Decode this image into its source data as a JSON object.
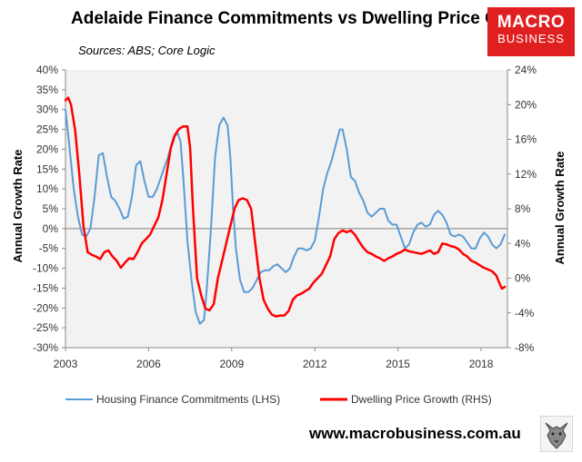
{
  "header": {
    "title": "Adelaide Finance Commitments vs Dwelling Price Growth",
    "sources": "Sources: ABS; Core Logic",
    "logo_line1": "MACRO",
    "logo_line2": "BUSINESS"
  },
  "footer": {
    "website": "www.macrobusiness.com.au",
    "wolf_icon": "wolf-icon"
  },
  "colors": {
    "finance": "#5b9bd5",
    "price": "#ff0000",
    "plot_bg": "#f2f2f2",
    "brand": "#e02020"
  },
  "chart_data": {
    "type": "line",
    "title": "Adelaide Finance Commitments vs Dwelling Price Growth",
    "xlabel": "",
    "ylabel_left": "Annual Growth Rate",
    "ylabel_right": "Annual Growth Rate",
    "xlim": [
      2003,
      2018.95
    ],
    "ylim_left": [
      -30,
      40
    ],
    "ylim_right": [
      -8,
      24
    ],
    "x_ticks": [
      2003,
      2006,
      2009,
      2012,
      2015,
      2018
    ],
    "x_tick_labels": [
      "2003",
      "2006",
      "2009",
      "2012",
      "2015",
      "2018"
    ],
    "y_left_ticks": [
      -30,
      -25,
      -20,
      -15,
      -10,
      -5,
      0,
      5,
      10,
      15,
      20,
      25,
      30,
      35,
      40
    ],
    "y_left_tick_labels": [
      "-30%",
      "-25%",
      "-20%",
      "-15%",
      "-10%",
      "-5%",
      "0%",
      "5%",
      "10%",
      "15%",
      "20%",
      "25%",
      "30%",
      "35%",
      "40%"
    ],
    "y_right_ticks": [
      -8,
      -4,
      0,
      4,
      8,
      12,
      16,
      20,
      24
    ],
    "y_right_tick_labels": [
      "-8%",
      "-4%",
      "0%",
      "4%",
      "8%",
      "12%",
      "16%",
      "20%",
      "24%"
    ],
    "grid": false,
    "legend_position": "bottom",
    "series": [
      {
        "name": "Housing Finance Commitments (LHS)",
        "axis": "left",
        "x": [
          2003.0,
          2003.15,
          2003.3,
          2003.45,
          2003.6,
          2003.75,
          2003.9,
          2004.05,
          2004.2,
          2004.35,
          2004.5,
          2004.65,
          2004.8,
          2004.95,
          2005.1,
          2005.25,
          2005.4,
          2005.55,
          2005.7,
          2005.85,
          2006.0,
          2006.15,
          2006.3,
          2006.5,
          2006.7,
          2006.9,
          2007.05,
          2007.15,
          2007.25,
          2007.4,
          2007.55,
          2007.7,
          2007.85,
          2008.0,
          2008.1,
          2008.25,
          2008.4,
          2008.55,
          2008.7,
          2008.85,
          2008.95,
          2009.05,
          2009.15,
          2009.3,
          2009.45,
          2009.6,
          2009.75,
          2009.9,
          2010.05,
          2010.2,
          2010.35,
          2010.5,
          2010.65,
          2010.8,
          2010.95,
          2011.1,
          2011.25,
          2011.4,
          2011.55,
          2011.7,
          2011.85,
          2012.0,
          2012.15,
          2012.3,
          2012.45,
          2012.6,
          2012.75,
          2012.9,
          2013.0,
          2013.15,
          2013.3,
          2013.45,
          2013.6,
          2013.75,
          2013.9,
          2014.05,
          2014.2,
          2014.35,
          2014.5,
          2014.65,
          2014.8,
          2014.95,
          2015.1,
          2015.25,
          2015.4,
          2015.55,
          2015.7,
          2015.85,
          2016.0,
          2016.15,
          2016.3,
          2016.45,
          2016.6,
          2016.75,
          2016.9,
          2017.05,
          2017.2,
          2017.35,
          2017.5,
          2017.65,
          2017.8,
          2017.95,
          2018.1,
          2018.25,
          2018.4,
          2018.55,
          2018.7,
          2018.85
        ],
        "values": [
          30,
          20,
          10,
          3,
          -1.5,
          -2,
          0,
          8,
          18.5,
          19,
          13,
          8,
          7,
          5,
          2.5,
          3,
          8,
          16,
          17,
          12,
          8,
          8,
          10,
          14,
          18,
          23,
          24,
          22,
          13,
          -3,
          -13,
          -21,
          -24,
          -23,
          -15,
          0,
          18,
          26,
          28,
          26,
          18,
          5,
          -5,
          -13,
          -16,
          -16,
          -15,
          -13,
          -11,
          -10.5,
          -10.5,
          -9.5,
          -9,
          -10,
          -11,
          -10,
          -7,
          -5,
          -5,
          -5.5,
          -5,
          -3,
          3,
          10,
          14,
          17,
          21,
          25,
          25,
          20,
          13,
          12,
          9,
          7,
          4,
          3,
          4,
          5,
          5,
          2,
          1,
          1,
          -2,
          -5,
          -4,
          -1,
          1,
          1.5,
          0.5,
          1,
          3.5,
          4.5,
          3.5,
          1.5,
          -1.5,
          -2,
          -1.5,
          -2,
          -3.5,
          -5,
          -5,
          -2.5,
          -1,
          -2,
          -4,
          -5,
          -4,
          -1.5
        ]
      },
      {
        "name": "Dwelling Price Growth (RHS)",
        "axis": "right",
        "x": [
          2003.0,
          2003.1,
          2003.2,
          2003.35,
          2003.5,
          2003.65,
          2003.8,
          2003.95,
          2004.1,
          2004.25,
          2004.4,
          2004.55,
          2004.7,
          2004.85,
          2005.0,
          2005.15,
          2005.3,
          2005.45,
          2005.6,
          2005.75,
          2005.9,
          2006.05,
          2006.2,
          2006.35,
          2006.5,
          2006.65,
          2006.8,
          2006.95,
          2007.1,
          2007.25,
          2007.4,
          2007.5,
          2007.6,
          2007.75,
          2007.9,
          2008.05,
          2008.2,
          2008.35,
          2008.5,
          2008.65,
          2008.8,
          2008.95,
          2009.1,
          2009.25,
          2009.4,
          2009.55,
          2009.7,
          2009.85,
          2010.0,
          2010.15,
          2010.3,
          2010.45,
          2010.6,
          2010.75,
          2010.9,
          2011.05,
          2011.2,
          2011.35,
          2011.5,
          2011.65,
          2011.8,
          2011.95,
          2012.1,
          2012.25,
          2012.4,
          2012.55,
          2012.7,
          2012.85,
          2013.0,
          2013.15,
          2013.3,
          2013.45,
          2013.6,
          2013.75,
          2013.9,
          2014.05,
          2014.2,
          2014.35,
          2014.5,
          2014.65,
          2014.8,
          2014.95,
          2015.1,
          2015.25,
          2015.4,
          2015.55,
          2015.7,
          2015.85,
          2016.0,
          2016.15,
          2016.3,
          2016.45,
          2016.6,
          2016.75,
          2016.9,
          2017.05,
          2017.2,
          2017.35,
          2017.5,
          2017.65,
          2017.8,
          2017.95,
          2018.1,
          2018.25,
          2018.4,
          2018.55,
          2018.65,
          2018.75,
          2018.85
        ],
        "values": [
          20.5,
          20.8,
          20.0,
          17.0,
          12.0,
          6.0,
          3.0,
          2.7,
          2.5,
          2.2,
          3.0,
          3.2,
          2.5,
          2.0,
          1.2,
          1.8,
          2.3,
          2.2,
          3.0,
          4.0,
          4.5,
          5.0,
          6.0,
          7.0,
          9.0,
          12.0,
          15.0,
          16.5,
          17.2,
          17.5,
          17.5,
          15.0,
          8.0,
          0.0,
          -2.0,
          -3.5,
          -3.7,
          -3.0,
          0.0,
          2.0,
          4.0,
          6.0,
          8.0,
          9.0,
          9.2,
          9.0,
          8.0,
          4.0,
          0.0,
          -2.5,
          -3.5,
          -4.2,
          -4.4,
          -4.3,
          -4.3,
          -3.8,
          -2.5,
          -2.0,
          -1.8,
          -1.5,
          -1.2,
          -0.5,
          0.0,
          0.5,
          1.5,
          2.5,
          4.5,
          5.2,
          5.5,
          5.3,
          5.5,
          5.0,
          4.2,
          3.5,
          3.0,
          2.8,
          2.5,
          2.3,
          2.0,
          2.3,
          2.5,
          2.8,
          3.0,
          3.3,
          3.1,
          3.0,
          2.9,
          2.8,
          3.0,
          3.2,
          2.8,
          3.0,
          4.0,
          3.9,
          3.7,
          3.6,
          3.3,
          2.8,
          2.5,
          2.0,
          1.8,
          1.5,
          1.2,
          1.0,
          0.8,
          0.3,
          -0.5,
          -1.2,
          -1.0
        ]
      }
    ]
  }
}
